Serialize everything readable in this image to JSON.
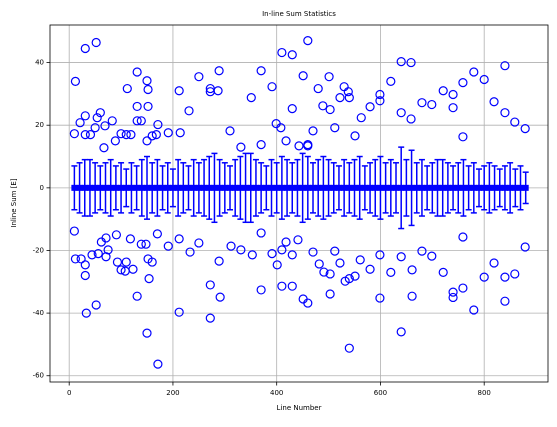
{
  "chart_data": {
    "type": "errorbar-scatter",
    "title": "In-line Sum Statistics",
    "x_label": "Line Number",
    "y_label": "Inline Sum [E]",
    "xlim": [
      -37,
      923
    ],
    "ylim": [
      -62,
      52
    ],
    "xticks": [
      0,
      200,
      400,
      600,
      800
    ],
    "yticks": [
      -60,
      -40,
      -20,
      0,
      20,
      40
    ],
    "grid": true,
    "points": {
      "color": "#0000ff",
      "x": [
        10,
        12,
        10,
        12,
        23,
        21,
        31,
        31,
        31,
        31,
        31,
        33,
        41,
        44,
        52,
        50,
        54,
        56,
        60,
        62,
        52,
        67,
        69,
        71,
        75,
        71,
        83,
        89,
        91,
        93,
        100,
        100,
        108,
        110,
        110,
        112,
        118,
        119,
        123,
        131,
        131,
        131,
        131,
        139,
        139,
        148,
        150,
        152,
        150,
        150,
        152,
        154,
        152,
        160,
        160,
        168,
        170,
        171,
        171,
        191,
        191,
        212,
        212,
        212,
        214,
        231,
        233,
        250,
        250,
        272,
        272,
        272,
        272,
        287,
        289,
        289,
        291,
        310,
        312,
        331,
        331,
        351,
        353,
        370,
        370,
        370,
        370,
        391,
        391,
        399,
        401,
        408,
        410,
        410,
        410,
        418,
        418,
        430,
        430,
        430,
        430,
        443,
        441,
        451,
        451,
        460,
        460,
        460,
        460,
        470,
        470,
        480,
        482,
        489,
        491,
        501,
        503,
        503,
        503,
        512,
        512,
        522,
        522,
        530,
        532,
        538,
        540,
        540,
        540,
        551,
        551,
        563,
        561,
        580,
        580,
        599,
        599,
        599,
        599,
        620,
        620,
        640,
        640,
        640,
        640,
        659,
        659,
        661,
        661,
        680,
        680,
        699,
        699,
        721,
        721,
        740,
        740,
        740,
        740,
        759,
        759,
        759,
        759,
        780,
        780,
        800,
        800,
        819,
        819,
        840,
        840,
        840,
        840,
        859,
        859,
        879,
        879
      ],
      "values": [
        17.3,
        34,
        -13.8,
        -22.7,
        -22.7,
        20.8,
        23,
        44.5,
        17,
        -24.6,
        -28,
        -40,
        17,
        -21.4,
        46.4,
        19.2,
        22.4,
        -21,
        24,
        -17.3,
        -37.4,
        12.8,
        19.8,
        -16,
        -19.8,
        -22,
        21.4,
        15,
        -15,
        -23.7,
        17.3,
        -26.2,
        -26.6,
        -23.7,
        17,
        31.7,
        -16.3,
        17,
        -26,
        37,
        26,
        21.4,
        -34.6,
        21.4,
        -18,
        -18,
        34.2,
        26,
        15,
        -46.4,
        -22.7,
        -29,
        31.4,
        16.6,
        -23.7,
        17,
        -14.7,
        20.2,
        -56.3,
        -18.6,
        17.6,
        31,
        -16.3,
        -39.7,
        17.6,
        24.6,
        -20.5,
        35.5,
        -17.6,
        31.7,
        30.7,
        -31,
        -41.6,
        31,
        37.4,
        -23.4,
        -34.9,
        18.2,
        -18.6,
        13,
        -19.8,
        28.8,
        -21.4,
        37.4,
        13.8,
        -14.4,
        -32.6,
        32.3,
        -21,
        20.5,
        -24.6,
        19.2,
        43.2,
        -31.4,
        -19.8,
        -17.3,
        15,
        42.5,
        25.3,
        -21.4,
        -31.4,
        13.4,
        -16.6,
        35.8,
        -35.5,
        47,
        13.8,
        13.4,
        -36.8,
        18.2,
        -20.5,
        31.7,
        -24.3,
        26.2,
        -26.9,
        35.5,
        25,
        -27.5,
        -33.9,
        19.2,
        -20.2,
        28.8,
        -24,
        32.3,
        -29.8,
        30.7,
        28.8,
        -29,
        -51.2,
        16.6,
        -28.2,
        22.4,
        -23,
        25.9,
        -26,
        29.8,
        27.8,
        -21.4,
        -35.2,
        34,
        -27,
        40.3,
        24,
        -22,
        -46,
        40,
        22,
        -26.2,
        -34.6,
        27.2,
        -20.2,
        26.6,
        -21.8,
        31,
        -27,
        29.8,
        25.6,
        -33.3,
        -35,
        33.6,
        16.3,
        -15.7,
        -32,
        37,
        -39,
        34.6,
        -28.5,
        27.5,
        -24,
        24,
        39,
        -28.5,
        -36.2,
        21,
        -27.5,
        18.9,
        -18.9
      ]
    },
    "errorbars": {
      "color": "#0000ff",
      "x": [
        10,
        20,
        30,
        40,
        50,
        60,
        70,
        80,
        90,
        100,
        110,
        120,
        130,
        140,
        150,
        160,
        170,
        180,
        190,
        200,
        210,
        220,
        230,
        240,
        250,
        260,
        270,
        280,
        290,
        300,
        310,
        320,
        330,
        340,
        350,
        360,
        370,
        380,
        390,
        400,
        410,
        420,
        430,
        440,
        450,
        460,
        470,
        480,
        490,
        500,
        510,
        520,
        530,
        540,
        550,
        560,
        570,
        580,
        590,
        600,
        610,
        620,
        630,
        640,
        650,
        660,
        670,
        680,
        690,
        700,
        710,
        720,
        730,
        740,
        750,
        760,
        770,
        780,
        790,
        800,
        810,
        820,
        830,
        840,
        850,
        860,
        870,
        880
      ],
      "values": [
        0,
        0,
        0,
        0,
        0,
        0,
        0,
        0,
        0,
        0,
        0,
        0,
        0,
        0,
        0,
        0,
        0,
        0,
        0,
        0,
        0,
        0,
        0,
        0,
        0,
        0,
        0,
        0,
        0,
        0,
        0,
        0,
        0,
        0,
        0,
        0,
        0,
        0,
        0,
        0,
        0,
        0,
        0,
        0,
        0,
        0,
        0,
        0,
        0,
        0,
        0,
        0,
        0,
        0,
        0,
        0,
        0,
        0,
        0,
        0,
        0,
        0,
        0,
        0,
        0,
        0,
        0,
        0,
        0,
        0,
        0,
        0,
        0,
        0,
        0,
        0,
        0,
        0,
        0,
        0,
        0,
        0,
        0,
        0,
        0,
        0,
        0,
        0
      ],
      "errors": [
        7,
        8,
        9,
        9,
        8,
        7,
        8,
        9,
        7,
        8,
        6,
        8,
        7,
        9,
        10,
        8,
        9,
        7,
        8,
        6,
        9,
        8,
        7,
        9,
        8,
        9,
        10,
        11,
        9,
        8,
        7,
        9,
        10,
        11,
        11,
        9,
        8,
        7,
        9,
        8,
        10,
        9,
        8,
        9,
        11,
        10,
        8,
        9,
        10,
        9,
        8,
        7,
        9,
        8,
        9,
        10,
        7,
        8,
        9,
        10,
        8,
        9,
        8,
        13,
        9,
        12,
        8,
        9,
        7,
        8,
        9,
        9,
        8,
        7,
        8,
        9,
        7,
        8,
        6,
        7,
        8,
        7,
        6,
        7,
        8,
        6,
        7,
        5
      ]
    }
  }
}
